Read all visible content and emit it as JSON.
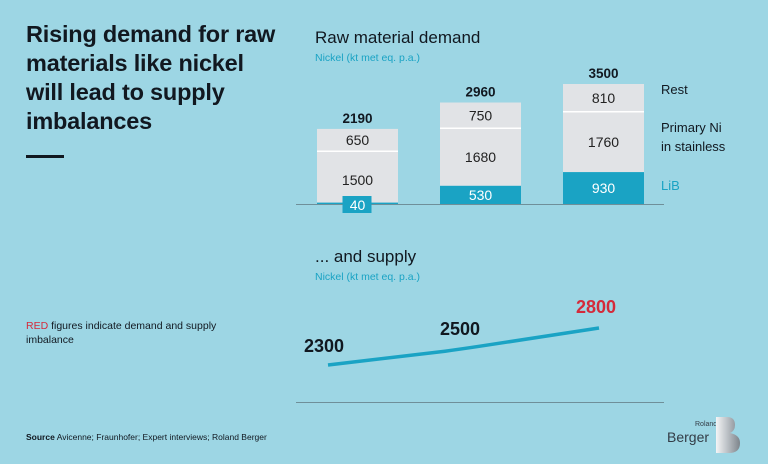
{
  "headline": "Rising demand for raw materials like nickel will lead to supply imbalances",
  "note": {
    "red_word": "RED",
    "rest": " figures indicate demand and supply imbalance"
  },
  "source": {
    "label": "Source",
    "text": " Avicenne; Fraunhofer; Expert interviews; Roland Berger"
  },
  "logo": {
    "small": "Roland",
    "word": "Berger",
    "mark": "B"
  },
  "colors": {
    "background": "#9dd6e4",
    "lib": "#1aa3c4",
    "segment": "#e1e3e6",
    "red": "#d42a3a",
    "text": "#111820"
  },
  "chart_data": [
    {
      "type": "bar",
      "stacked": true,
      "title": "Raw material demand",
      "subtitle": "Nickel (kt met eq. p.a.)",
      "categories": [
        "",
        "",
        ""
      ],
      "series": [
        {
          "name": "LiB",
          "values": [
            40,
            530,
            930
          ],
          "color": "#1aa3c4"
        },
        {
          "name": "Primary Ni in stainless",
          "values": [
            1500,
            1680,
            1760
          ],
          "color": "#e1e3e6"
        },
        {
          "name": "Rest",
          "values": [
            650,
            750,
            810
          ],
          "color": "#e1e3e6"
        }
      ],
      "totals": [
        2190,
        2960,
        3500
      ],
      "legend": {
        "placement": "right",
        "items": [
          {
            "label_lines": [
              "Rest"
            ]
          },
          {
            "label_lines": [
              "Primary Ni",
              "in stainless"
            ]
          },
          {
            "label_lines": [
              "LiB"
            ]
          }
        ]
      },
      "ylim": [
        0,
        3500
      ]
    },
    {
      "type": "line",
      "title": "... and supply",
      "subtitle": "Nickel (kt met eq. p.a.)",
      "series": [
        {
          "name": "Supply",
          "values": [
            2300,
            2500,
            2800
          ],
          "color": "#1aa3c4"
        }
      ],
      "labels": [
        {
          "text": "2300",
          "imbalance": false
        },
        {
          "text": "2500",
          "imbalance": false
        },
        {
          "text": "2800",
          "imbalance": true
        }
      ],
      "ylim": [
        2000,
        3000
      ]
    }
  ]
}
